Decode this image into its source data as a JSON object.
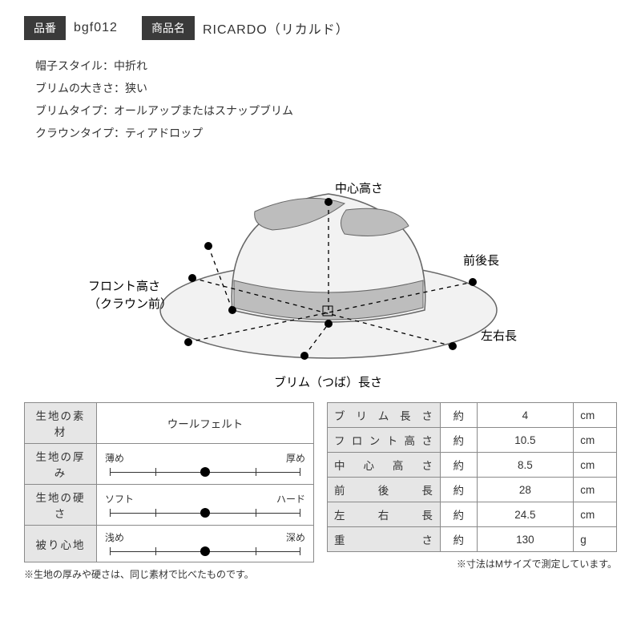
{
  "header": {
    "code_label": "品番",
    "code_value": "bgf012",
    "name_label": "商品名",
    "name_value": "RICARDO（リカルド）"
  },
  "specs": {
    "lines": [
      "帽子スタイル：中折れ",
      "ブリムの大きさ：狭い",
      "ブリムタイプ：オールアップまたはスナップブリム",
      "クラウンタイプ：ティアドロップ"
    ]
  },
  "diagram": {
    "labels": {
      "center_height": "中心高さ",
      "front_back": "前後長",
      "front_height_l1": "フロント高さ",
      "front_height_l2": "（クラウン前）",
      "left_right": "左右長",
      "brim_length": "ブリム（つば）長さ"
    },
    "colors": {
      "hat_light": "#f2f2f2",
      "hat_band": "#bdbdbd",
      "stroke": "#666666",
      "dot": "#000000",
      "dash": "#000000"
    }
  },
  "material_table": {
    "rows": [
      {
        "label": "生地の素材",
        "type": "text",
        "value": "ウールフェルト"
      },
      {
        "label": "生地の厚み",
        "type": "slider",
        "min_label": "薄め",
        "max_label": "厚め",
        "value_pct": 50
      },
      {
        "label": "生地の硬さ",
        "type": "slider",
        "min_label": "ソフト",
        "max_label": "ハード",
        "value_pct": 50
      },
      {
        "label": "被り心地",
        "type": "slider",
        "min_label": "浅め",
        "max_label": "深め",
        "value_pct": 50
      }
    ],
    "footnote": "※生地の厚みや硬さは、同じ素材で比べたものです。"
  },
  "measure_table": {
    "approx": "約",
    "rows": [
      {
        "label": "ブリム長さ",
        "value": "4",
        "unit": "cm"
      },
      {
        "label": "フロント高さ",
        "value": "10.5",
        "unit": "cm"
      },
      {
        "label": "中心高さ",
        "value": "8.5",
        "unit": "cm"
      },
      {
        "label": "前後長",
        "value": "28",
        "unit": "cm"
      },
      {
        "label": "左右長",
        "value": "24.5",
        "unit": "cm"
      },
      {
        "label": "重さ",
        "value": "130",
        "unit": "g"
      }
    ],
    "footnote": "※寸法はMサイズで測定しています。"
  }
}
